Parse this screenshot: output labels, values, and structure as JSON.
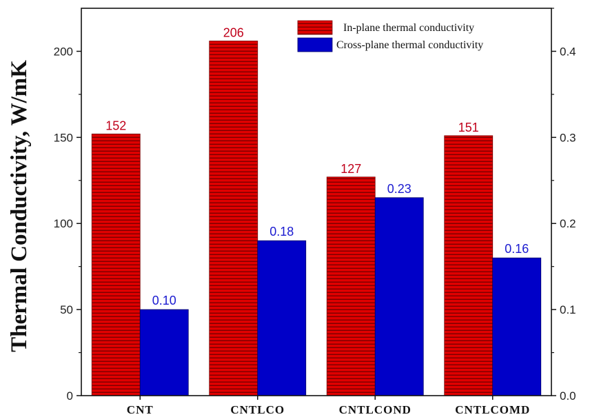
{
  "chart_data": {
    "type": "bar",
    "title": "",
    "xlabel": "",
    "ylabel": "Thermal Conductivity, W/mK",
    "categories": [
      "CNT",
      "CNTLCO",
      "CNTLCOND",
      "CNTLCOMD"
    ],
    "series": [
      {
        "name": "In-plane thermal conductivity",
        "axis": "left",
        "color": "#e00000",
        "values": [
          152,
          206,
          127,
          151
        ],
        "labels": [
          "152",
          "206",
          "127",
          "151"
        ]
      },
      {
        "name": "Cross-plane thermal conductivity",
        "axis": "right",
        "color": "#0000c8",
        "values": [
          0.1,
          0.18,
          0.23,
          0.16
        ],
        "labels": [
          "0.10",
          "0.18",
          "0.23",
          "0.16"
        ]
      }
    ],
    "ylim": [
      0,
      225
    ],
    "y_ticks": [
      0,
      50,
      100,
      150,
      200
    ],
    "y_tick_labels": [
      "0",
      "50",
      "100",
      "150",
      "200"
    ],
    "y2lim": [
      0,
      0.45
    ],
    "y2_ticks": [
      0,
      0.1,
      0.2,
      0.3,
      0.4
    ],
    "y2_tick_labels": [
      "0.0",
      "0.1",
      "0.2",
      "0.3",
      "0.4"
    ],
    "legend_position": "top-right",
    "grid": false,
    "label_colors": {
      "in_plane": "#c0001a",
      "cross_plane": "#1a1ad0"
    }
  }
}
